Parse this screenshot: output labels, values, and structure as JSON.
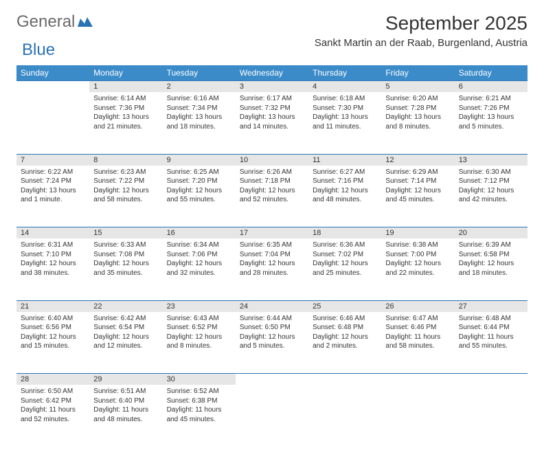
{
  "logo": {
    "part1": "General",
    "part2": "Blue"
  },
  "title": "September 2025",
  "subtitle": "Sankt Martin an der Raab, Burgenland, Austria",
  "colors": {
    "header_bg": "#3b8bc9",
    "header_text": "#ffffff",
    "rule": "#2a72b5",
    "daynum_bg": "#e6e6e6",
    "text": "#333333",
    "logo_gray": "#6a6a6a",
    "logo_blue": "#2a72b5"
  },
  "weekdays": [
    "Sunday",
    "Monday",
    "Tuesday",
    "Wednesday",
    "Thursday",
    "Friday",
    "Saturday"
  ],
  "weeks": [
    [
      null,
      {
        "n": "1",
        "sunrise": "6:14 AM",
        "sunset": "7:36 PM",
        "daylight": "13 hours and 21 minutes."
      },
      {
        "n": "2",
        "sunrise": "6:16 AM",
        "sunset": "7:34 PM",
        "daylight": "13 hours and 18 minutes."
      },
      {
        "n": "3",
        "sunrise": "6:17 AM",
        "sunset": "7:32 PM",
        "daylight": "13 hours and 14 minutes."
      },
      {
        "n": "4",
        "sunrise": "6:18 AM",
        "sunset": "7:30 PM",
        "daylight": "13 hours and 11 minutes."
      },
      {
        "n": "5",
        "sunrise": "6:20 AM",
        "sunset": "7:28 PM",
        "daylight": "13 hours and 8 minutes."
      },
      {
        "n": "6",
        "sunrise": "6:21 AM",
        "sunset": "7:26 PM",
        "daylight": "13 hours and 5 minutes."
      }
    ],
    [
      {
        "n": "7",
        "sunrise": "6:22 AM",
        "sunset": "7:24 PM",
        "daylight": "13 hours and 1 minute."
      },
      {
        "n": "8",
        "sunrise": "6:23 AM",
        "sunset": "7:22 PM",
        "daylight": "12 hours and 58 minutes."
      },
      {
        "n": "9",
        "sunrise": "6:25 AM",
        "sunset": "7:20 PM",
        "daylight": "12 hours and 55 minutes."
      },
      {
        "n": "10",
        "sunrise": "6:26 AM",
        "sunset": "7:18 PM",
        "daylight": "12 hours and 52 minutes."
      },
      {
        "n": "11",
        "sunrise": "6:27 AM",
        "sunset": "7:16 PM",
        "daylight": "12 hours and 48 minutes."
      },
      {
        "n": "12",
        "sunrise": "6:29 AM",
        "sunset": "7:14 PM",
        "daylight": "12 hours and 45 minutes."
      },
      {
        "n": "13",
        "sunrise": "6:30 AM",
        "sunset": "7:12 PM",
        "daylight": "12 hours and 42 minutes."
      }
    ],
    [
      {
        "n": "14",
        "sunrise": "6:31 AM",
        "sunset": "7:10 PM",
        "daylight": "12 hours and 38 minutes."
      },
      {
        "n": "15",
        "sunrise": "6:33 AM",
        "sunset": "7:08 PM",
        "daylight": "12 hours and 35 minutes."
      },
      {
        "n": "16",
        "sunrise": "6:34 AM",
        "sunset": "7:06 PM",
        "daylight": "12 hours and 32 minutes."
      },
      {
        "n": "17",
        "sunrise": "6:35 AM",
        "sunset": "7:04 PM",
        "daylight": "12 hours and 28 minutes."
      },
      {
        "n": "18",
        "sunrise": "6:36 AM",
        "sunset": "7:02 PM",
        "daylight": "12 hours and 25 minutes."
      },
      {
        "n": "19",
        "sunrise": "6:38 AM",
        "sunset": "7:00 PM",
        "daylight": "12 hours and 22 minutes."
      },
      {
        "n": "20",
        "sunrise": "6:39 AM",
        "sunset": "6:58 PM",
        "daylight": "12 hours and 18 minutes."
      }
    ],
    [
      {
        "n": "21",
        "sunrise": "6:40 AM",
        "sunset": "6:56 PM",
        "daylight": "12 hours and 15 minutes."
      },
      {
        "n": "22",
        "sunrise": "6:42 AM",
        "sunset": "6:54 PM",
        "daylight": "12 hours and 12 minutes."
      },
      {
        "n": "23",
        "sunrise": "6:43 AM",
        "sunset": "6:52 PM",
        "daylight": "12 hours and 8 minutes."
      },
      {
        "n": "24",
        "sunrise": "6:44 AM",
        "sunset": "6:50 PM",
        "daylight": "12 hours and 5 minutes."
      },
      {
        "n": "25",
        "sunrise": "6:46 AM",
        "sunset": "6:48 PM",
        "daylight": "12 hours and 2 minutes."
      },
      {
        "n": "26",
        "sunrise": "6:47 AM",
        "sunset": "6:46 PM",
        "daylight": "11 hours and 58 minutes."
      },
      {
        "n": "27",
        "sunrise": "6:48 AM",
        "sunset": "6:44 PM",
        "daylight": "11 hours and 55 minutes."
      }
    ],
    [
      {
        "n": "28",
        "sunrise": "6:50 AM",
        "sunset": "6:42 PM",
        "daylight": "11 hours and 52 minutes."
      },
      {
        "n": "29",
        "sunrise": "6:51 AM",
        "sunset": "6:40 PM",
        "daylight": "11 hours and 48 minutes."
      },
      {
        "n": "30",
        "sunrise": "6:52 AM",
        "sunset": "6:38 PM",
        "daylight": "11 hours and 45 minutes."
      },
      null,
      null,
      null,
      null
    ]
  ],
  "labels": {
    "sunrise": "Sunrise:",
    "sunset": "Sunset:",
    "daylight": "Daylight:"
  }
}
